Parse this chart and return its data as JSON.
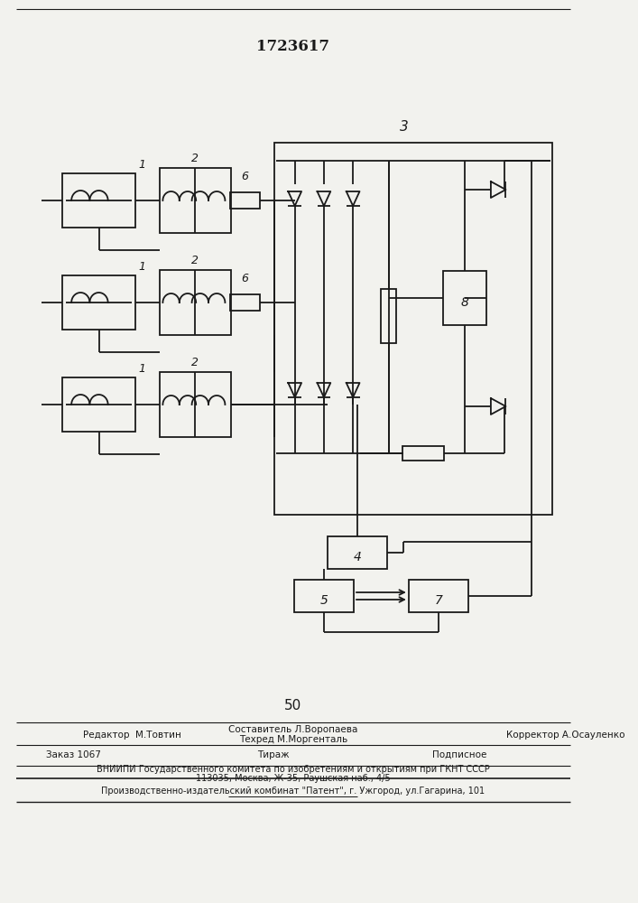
{
  "title": "1723617",
  "bg": "#f2f2ee",
  "lc": "#1a1a1a",
  "page_number": "50",
  "footer1_left": "Редактор  М.Товтин",
  "footer1_center_top": "Составитель Л.Воропаева",
  "footer1_center_bot": "Техред М.Моргенталь",
  "footer1_right": "Корректор А.Осауленко",
  "footer2": "Заказ 1067      Тираж                 Подписное",
  "footer3": "ВНИИПИ Государственного комитета по изобретениям и открытиям при ГКНТ СССР",
  "footer4": "113035, Москва, Ж-35, Раушская наб., 4/5",
  "footer5": "Производственно-издательский комбинат \"Патент\", г. Ужгород, ул.Гагарина, 101"
}
